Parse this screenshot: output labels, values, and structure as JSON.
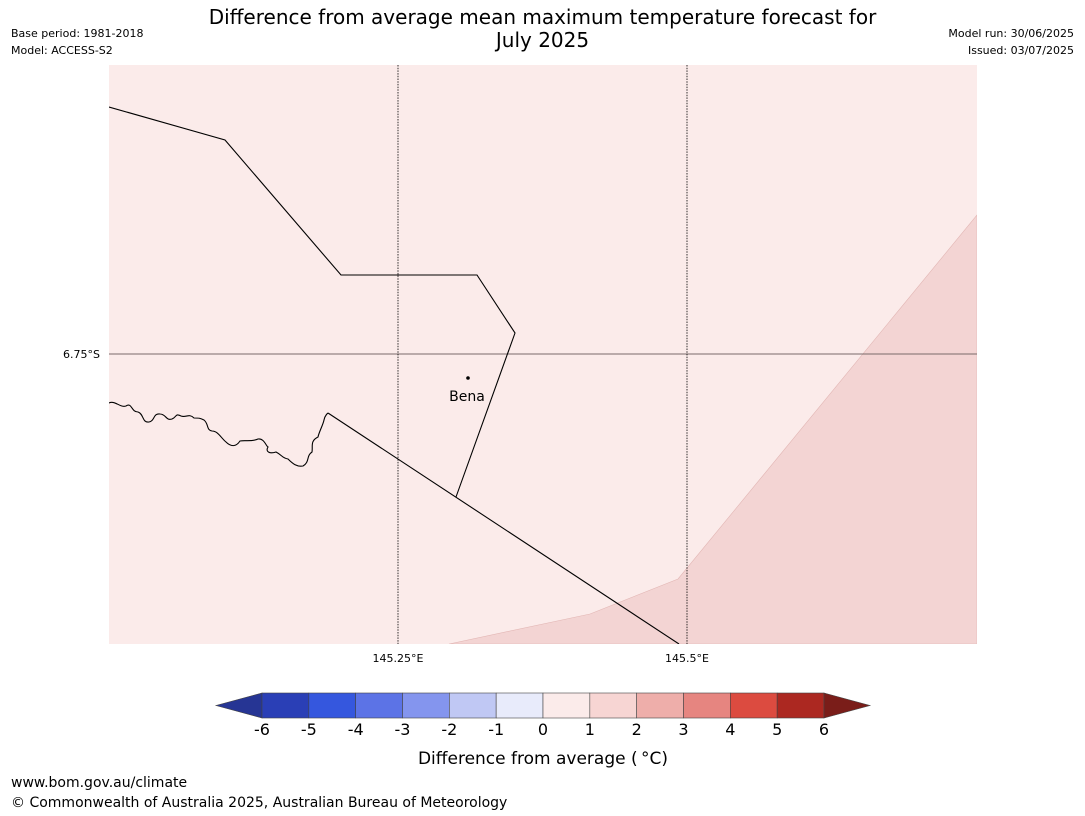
{
  "header": {
    "base_period": "Base period: 1981-2018",
    "model": "Model: ACCESS-S2",
    "title_line1": "Difference from average mean maximum temperature forecast for",
    "title_line2": "July 2025",
    "model_run": "Model run: 30/06/2025",
    "issued": "Issued: 03/07/2025"
  },
  "map": {
    "latitude_labels": [
      "6.75°S"
    ],
    "longitude_labels": [
      "145.25°E",
      "145.5°E"
    ],
    "place": {
      "name": "Bena"
    },
    "fill_colors": {
      "anomaly_0_to_1": "#fbebea",
      "anomaly_1_to_2": "#f3d4d3"
    }
  },
  "colorbar": {
    "ticks": [
      "-6",
      "-5",
      "-4",
      "-3",
      "-2",
      "-1",
      "0",
      "1",
      "2",
      "3",
      "4",
      "5",
      "6"
    ],
    "colors": [
      "#263594",
      "#2a3fb6",
      "#3557de",
      "#5c73e6",
      "#8495ee",
      "#c0c8f4",
      "#e8ebfb",
      "#fbebea",
      "#f7d5d3",
      "#eeaeaa",
      "#e68580",
      "#dc4b40",
      "#ac2821",
      "#7a1d19"
    ],
    "label": "Difference from average ( °C)"
  },
  "footer": {
    "url": "www.bom.gov.au/climate",
    "copyright": "© Commonwealth of Australia 2025, Australian Bureau of Meteorology"
  }
}
